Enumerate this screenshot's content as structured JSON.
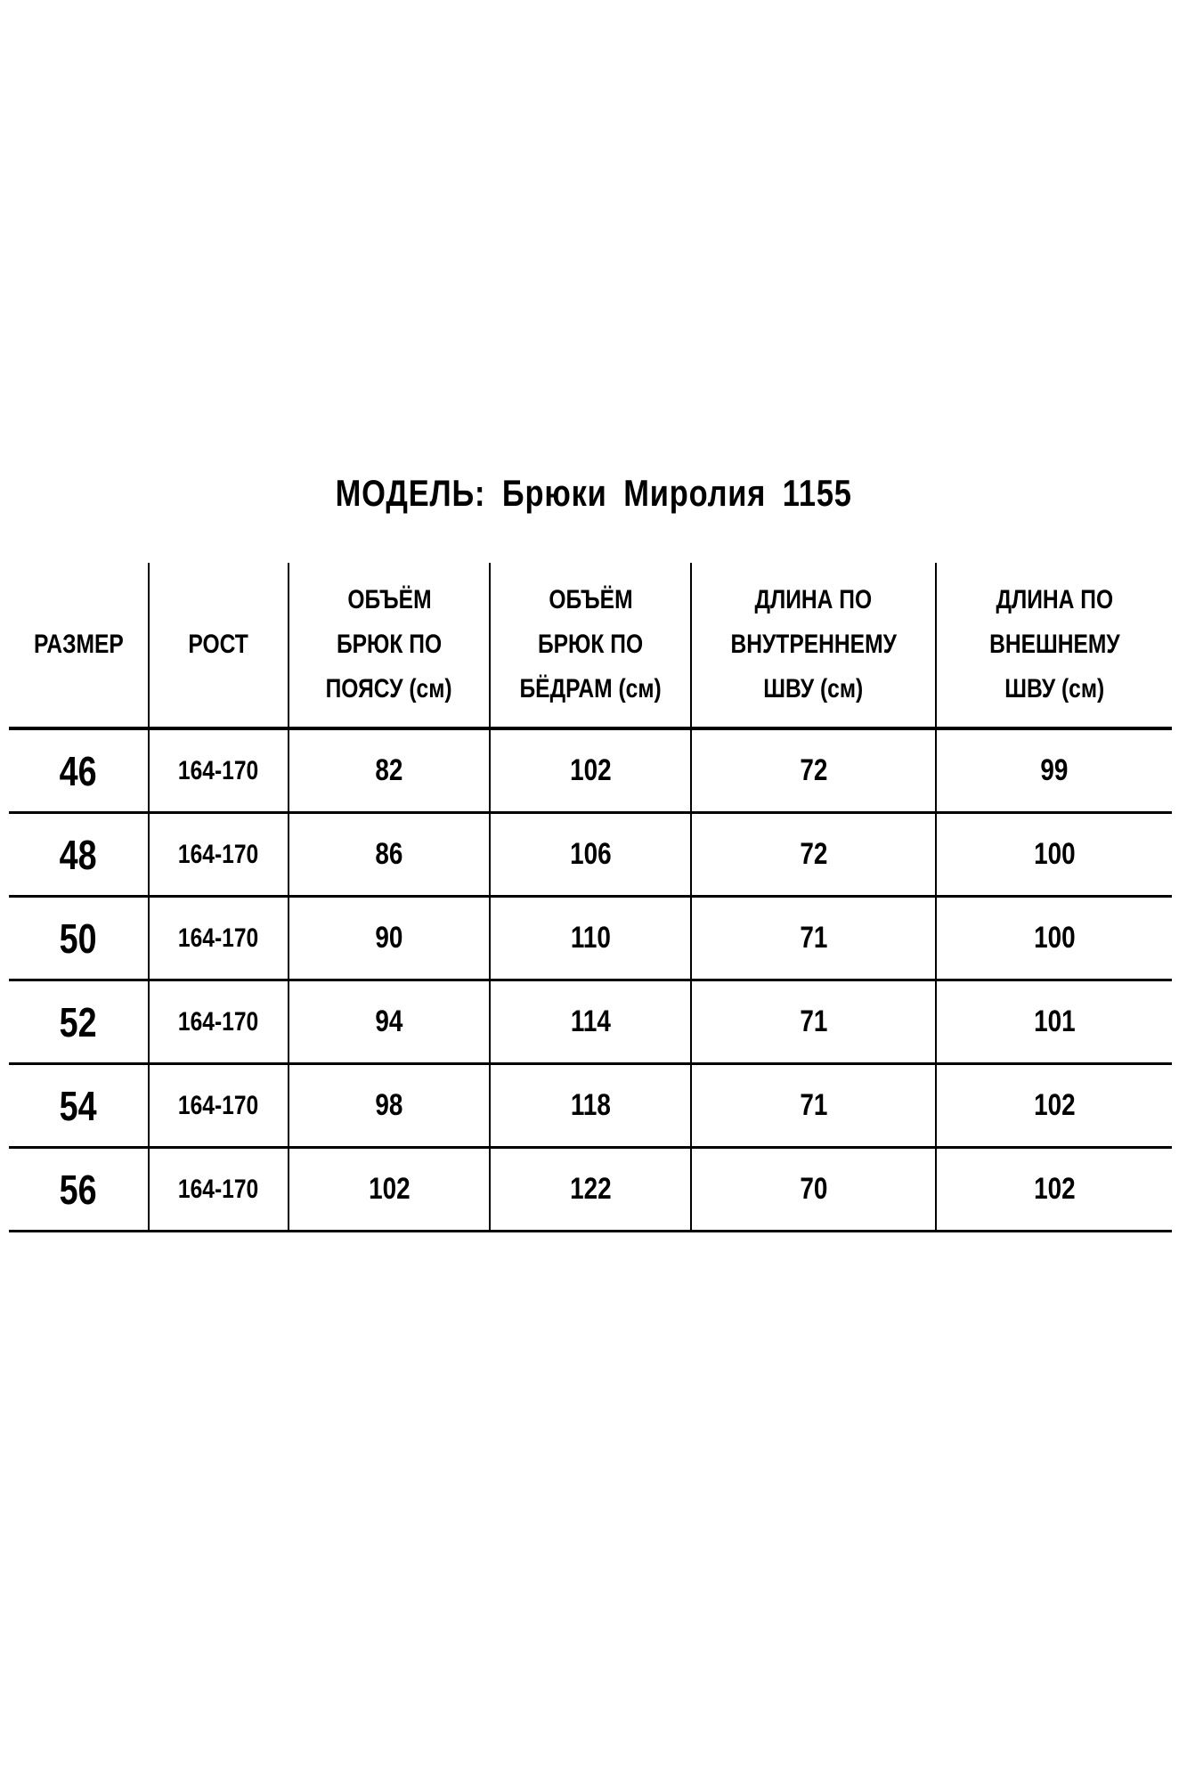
{
  "title": "МОДЕЛЬ:  Брюки  Миролия  1155",
  "headers": [
    "РАЗМЕР",
    "РОСТ",
    "ОБЪЁМ БРЮК ПО ПОЯСУ (см)",
    "ОБЪЁМ БРЮК ПО БЁДРАМ (см)",
    "ДЛИНА ПО ВНУТРЕННЕМУ ШВУ (см)",
    "ДЛИНА ПО ВНЕШНЕМУ ШВУ (см)"
  ],
  "header_lines": [
    [
      "РАЗМЕР"
    ],
    [
      "РОСТ"
    ],
    [
      "ОБЪЁМ",
      "БРЮК ПО",
      "ПОЯСУ (см)"
    ],
    [
      "ОБЪЁМ",
      "БРЮК ПО",
      "БЁДРАМ (см)"
    ],
    [
      "ДЛИНА ПО",
      "ВНУТРЕННЕМУ",
      "ШВУ (см)"
    ],
    [
      "ДЛИНА ПО",
      "ВНЕШНЕМУ",
      "ШВУ (см)"
    ]
  ],
  "rows": [
    [
      "46",
      "164-170",
      "82",
      "102",
      "72",
      "99"
    ],
    [
      "48",
      "164-170",
      "86",
      "106",
      "72",
      "100"
    ],
    [
      "50",
      "164-170",
      "90",
      "110",
      "71",
      "100"
    ],
    [
      "52",
      "164-170",
      "94",
      "114",
      "71",
      "101"
    ],
    [
      "54",
      "164-170",
      "98",
      "118",
      "71",
      "102"
    ],
    [
      "56",
      "164-170",
      "102",
      "122",
      "70",
      "102"
    ]
  ]
}
